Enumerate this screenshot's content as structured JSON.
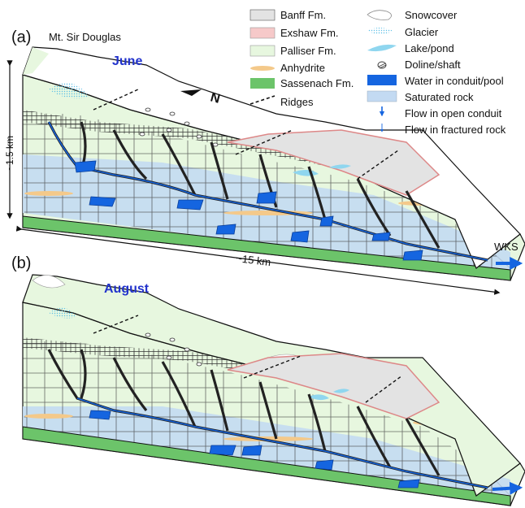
{
  "panels": [
    {
      "letter": "(a)",
      "site": "Mt. Sir Douglas",
      "season": "June"
    },
    {
      "letter": "(b)",
      "season": "August"
    }
  ],
  "scale": {
    "height": "~1.5 km",
    "length": "~15 km"
  },
  "north_arrow": "N",
  "outlet": "WKS",
  "legend": {
    "left": [
      {
        "label": "Banff Fm.",
        "color": "#e3e3e3",
        "icon": "banff-swatch"
      },
      {
        "label": "Exshaw Fm.",
        "color": "#f6c9c9",
        "icon": "exshaw-swatch"
      },
      {
        "label": "Palliser Fm.",
        "color": "#e7f7df",
        "icon": "palliser-swatch"
      },
      {
        "label": "Anhydrite",
        "color": "#f4c98a",
        "icon": "anhydrite-lens"
      },
      {
        "label": "Sassenach Fm.",
        "color": "#6cc46a",
        "icon": "sassenach-swatch"
      },
      {
        "label": "Ridges",
        "color": "#111111",
        "icon": "ridge-dash"
      }
    ],
    "right": [
      {
        "label": "Snowcover",
        "color": "#ffffff",
        "icon": "snow-patch"
      },
      {
        "label": "Glacier",
        "color": "#aee3f5",
        "icon": "glacier-dots"
      },
      {
        "label": "Lake/pond",
        "color": "#8fd6ef",
        "icon": "lake-shape"
      },
      {
        "label": "Doline/shaft",
        "color": "#555555",
        "icon": "doline-hatch"
      },
      {
        "label": "Water in conduit/pool",
        "color": "#1565e0",
        "icon": "water-block"
      },
      {
        "label": "Saturated rock",
        "color": "#c3daf2",
        "icon": "saturated-block"
      },
      {
        "label": "Flow in open conduit",
        "color": "#1565e0",
        "icon": "flow-arrow-open"
      },
      {
        "label": "Flow in fractured rock",
        "color": "#1565e0",
        "icon": "flow-arrow-fractured"
      }
    ]
  }
}
